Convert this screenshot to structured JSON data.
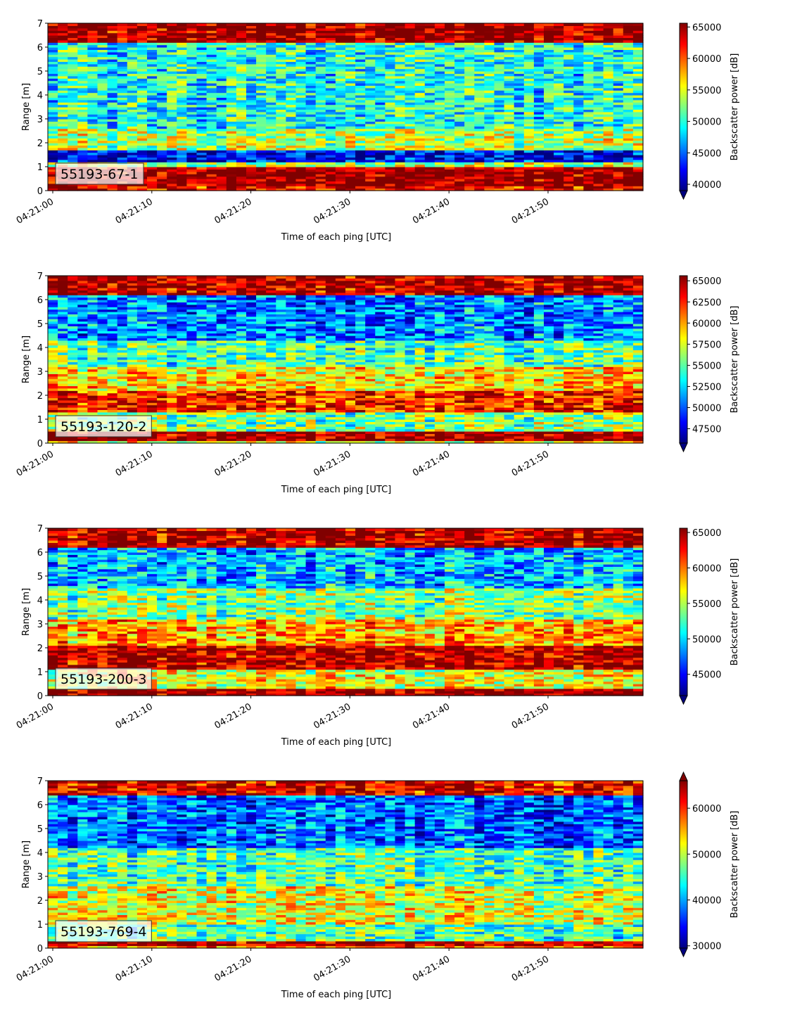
{
  "chart_data": [
    {
      "type": "heatmap",
      "label": "55193-67-1",
      "xlabel": "Time of each ping [UTC]",
      "ylabel": "Range [m]",
      "x_range": [
        "04:21:00",
        "04:21:59"
      ],
      "xticks": [
        "04:21:00",
        "04:21:10",
        "04:21:20",
        "04:21:30",
        "04:21:40",
        "04:21:50"
      ],
      "ylim": [
        0,
        7
      ],
      "yticks": [
        "0",
        "1",
        "2",
        "3",
        "4",
        "5",
        "6",
        "7"
      ],
      "colorbar": {
        "label": "Backscatter power [dB]",
        "colormap": "jet",
        "vmin": 39000,
        "vmax": 65600,
        "extend": "min",
        "ticks": [
          40000,
          45000,
          50000,
          55000,
          60000,
          65000
        ],
        "tick_labels": [
          "40000",
          "45000",
          "50000",
          "55000",
          "60000",
          "65000"
        ]
      },
      "range_profile": [
        {
          "range_m": [
            0,
            0.2
          ],
          "level": 0.9
        },
        {
          "range_m": [
            0.2,
            0.9
          ],
          "level": 1.0
        },
        {
          "range_m": [
            0.9,
            1.05
          ],
          "level": 0.95
        },
        {
          "range_m": [
            1.05,
            1.25
          ],
          "level": 0.55
        },
        {
          "range_m": [
            1.25,
            1.7
          ],
          "level": 0.12
        },
        {
          "range_m": [
            1.7,
            2.6
          ],
          "level": 0.55
        },
        {
          "range_m": [
            2.6,
            6.2
          ],
          "level": 0.4
        },
        {
          "range_m": [
            6.2,
            7
          ],
          "level": 0.98
        }
      ]
    },
    {
      "type": "heatmap",
      "label": "55193-120-2",
      "xlabel": "Time of each ping [UTC]",
      "ylabel": "Range [m]",
      "x_range": [
        "04:21:00",
        "04:21:59"
      ],
      "xticks": [
        "04:21:00",
        "04:21:10",
        "04:21:20",
        "04:21:30",
        "04:21:40",
        "04:21:50"
      ],
      "ylim": [
        0,
        7
      ],
      "yticks": [
        "0",
        "1",
        "2",
        "3",
        "4",
        "5",
        "6",
        "7"
      ],
      "colorbar": {
        "label": "Backscatter power [dB]",
        "colormap": "jet",
        "vmin": 45800,
        "vmax": 65600,
        "extend": "min",
        "ticks": [
          47500,
          50000,
          52500,
          55000,
          57500,
          60000,
          62500,
          65000
        ],
        "tick_labels": [
          "47500",
          "50000",
          "52500",
          "55000",
          "57500",
          "60000",
          "62500",
          "65000"
        ]
      },
      "range_profile": [
        {
          "range_m": [
            0,
            0.1
          ],
          "level": 0.6
        },
        {
          "range_m": [
            0.1,
            0.5
          ],
          "level": 1.0
        },
        {
          "range_m": [
            0.5,
            1.3
          ],
          "level": 0.5
        },
        {
          "range_m": [
            1.3,
            2.2
          ],
          "level": 0.85
        },
        {
          "range_m": [
            2.2,
            3.2
          ],
          "level": 0.65
        },
        {
          "range_m": [
            3.2,
            4.3
          ],
          "level": 0.45
        },
        {
          "range_m": [
            4.3,
            6.2
          ],
          "level": 0.25
        },
        {
          "range_m": [
            6.2,
            7
          ],
          "level": 0.95
        }
      ]
    },
    {
      "type": "heatmap",
      "label": "55193-200-3",
      "xlabel": "Time of each ping [UTC]",
      "ylabel": "Range [m]",
      "x_range": [
        "04:21:00",
        "04:21:59"
      ],
      "xticks": [
        "04:21:00",
        "04:21:10",
        "04:21:20",
        "04:21:30",
        "04:21:40",
        "04:21:50"
      ],
      "ylim": [
        0,
        7
      ],
      "yticks": [
        "0",
        "1",
        "2",
        "3",
        "4",
        "5",
        "6",
        "7"
      ],
      "colorbar": {
        "label": "Backscatter power [dB]",
        "colormap": "jet",
        "vmin": 42000,
        "vmax": 65600,
        "extend": "min",
        "ticks": [
          45000,
          50000,
          55000,
          60000,
          65000
        ],
        "tick_labels": [
          "45000",
          "50000",
          "55000",
          "60000",
          "65000"
        ]
      },
      "range_profile": [
        {
          "range_m": [
            0,
            0.3
          ],
          "level": 1.0
        },
        {
          "range_m": [
            0.3,
            1.1
          ],
          "level": 0.6
        },
        {
          "range_m": [
            1.1,
            2.1
          ],
          "level": 0.95
        },
        {
          "range_m": [
            2.1,
            3.2
          ],
          "level": 0.7
        },
        {
          "range_m": [
            3.2,
            4.5
          ],
          "level": 0.5
        },
        {
          "range_m": [
            4.5,
            6.2
          ],
          "level": 0.3
        },
        {
          "range_m": [
            6.2,
            7
          ],
          "level": 0.95
        }
      ]
    },
    {
      "type": "heatmap",
      "label": "55193-769-4",
      "xlabel": "Time of each ping [UTC]",
      "ylabel": "Range [m]",
      "x_range": [
        "04:21:00",
        "04:21:59"
      ],
      "xticks": [
        "04:21:00",
        "04:21:10",
        "04:21:20",
        "04:21:30",
        "04:21:40",
        "04:21:50"
      ],
      "ylim": [
        0,
        7
      ],
      "yticks": [
        "0",
        "1",
        "2",
        "3",
        "4",
        "5",
        "6",
        "7"
      ],
      "colorbar": {
        "label": "Backscatter power [dB]",
        "colormap": "jet",
        "vmin": 29500,
        "vmax": 66000,
        "extend": "both",
        "ticks": [
          30000,
          40000,
          50000,
          60000
        ],
        "tick_labels": [
          "30000",
          "40000",
          "50000",
          "60000"
        ]
      },
      "range_profile": [
        {
          "range_m": [
            0,
            0.1
          ],
          "level": 0.75
        },
        {
          "range_m": [
            0.1,
            0.35
          ],
          "level": 0.98
        },
        {
          "range_m": [
            0.35,
            1.0
          ],
          "level": 0.45
        },
        {
          "range_m": [
            1.0,
            2.6
          ],
          "level": 0.6
        },
        {
          "range_m": [
            2.6,
            4.2
          ],
          "level": 0.45
        },
        {
          "range_m": [
            4.2,
            6.4
          ],
          "level": 0.22
        },
        {
          "range_m": [
            6.4,
            7
          ],
          "level": 0.9
        }
      ]
    }
  ]
}
